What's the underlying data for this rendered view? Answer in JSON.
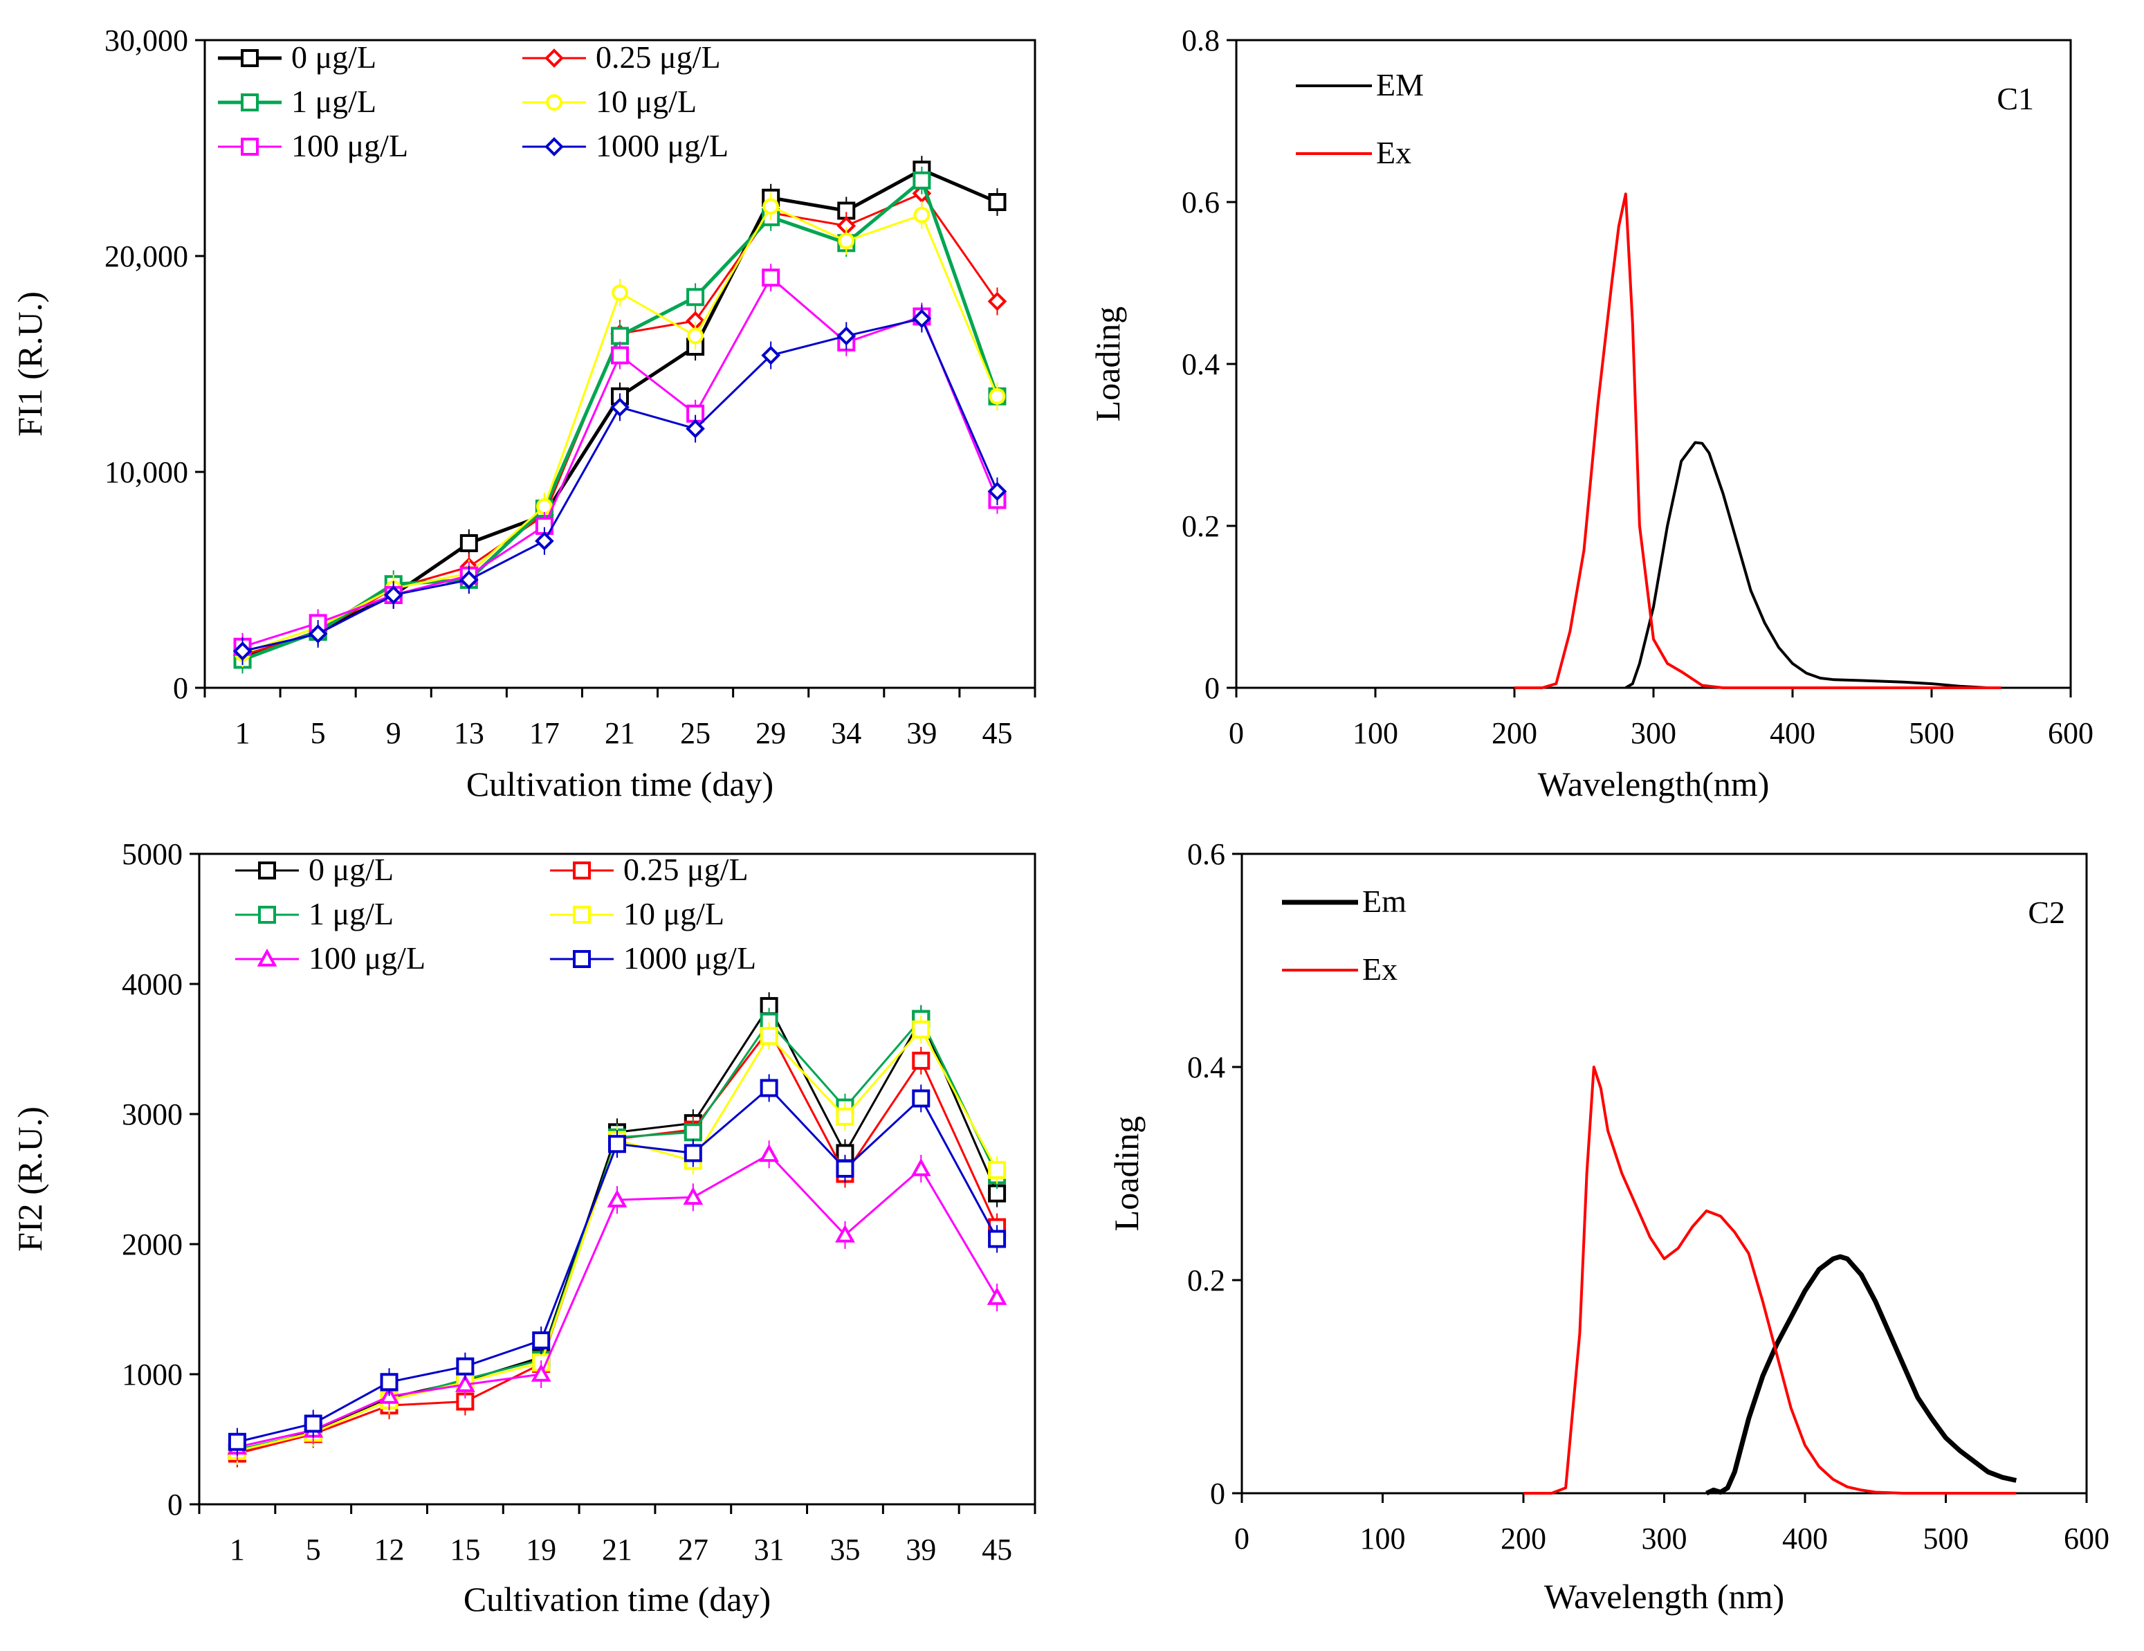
{
  "chart_data": [
    {
      "id": "fi1",
      "type": "line",
      "title": "",
      "xlabel": "Cultivation time (day)",
      "ylabel": "FI1 (R.U.)",
      "categories": [
        "1",
        "5",
        "9",
        "13",
        "17",
        "21",
        "25",
        "29",
        "34",
        "39",
        "45"
      ],
      "ylim": [
        0,
        30000
      ],
      "yticks": [
        0,
        10000,
        20000,
        30000
      ],
      "ytick_labels": [
        "0",
        "10,000",
        "20,000",
        "30,000"
      ],
      "legend_position": "top-left",
      "series": [
        {
          "name": "0 μg/L",
          "color": "#000000",
          "marker": "square",
          "width": 5,
          "values": [
            1400,
            2600,
            4300,
            6700,
            8000,
            13500,
            15800,
            22700,
            22100,
            24000,
            22500
          ]
        },
        {
          "name": "0.25 μg/L",
          "color": "#ff0000",
          "marker": "diamond",
          "width": 3,
          "values": [
            1500,
            2600,
            4600,
            5600,
            8000,
            16400,
            17000,
            22000,
            21400,
            22900,
            17900
          ]
        },
        {
          "name": "1 μg/L",
          "color": "#00a651",
          "marker": "square",
          "width": 5,
          "values": [
            1300,
            2600,
            4800,
            5000,
            8300,
            16300,
            18100,
            21800,
            20600,
            23500,
            13500
          ]
        },
        {
          "name": "10 μg/L",
          "color": "#ffff00",
          "marker": "circle",
          "width": 3,
          "values": [
            1600,
            2800,
            4600,
            5300,
            8400,
            18300,
            16300,
            22300,
            20700,
            21900,
            13500
          ]
        },
        {
          "name": "100 μg/L",
          "color": "#ff00ff",
          "marker": "square",
          "width": 3,
          "values": [
            1900,
            3000,
            4300,
            5200,
            7500,
            15400,
            12700,
            19000,
            16000,
            17200,
            8700
          ]
        },
        {
          "name": "1000 μg/L",
          "color": "#0000cc",
          "marker": "diamond",
          "width": 3,
          "values": [
            1700,
            2500,
            4300,
            5000,
            6800,
            13000,
            12000,
            15400,
            16300,
            17100,
            9100
          ]
        }
      ]
    },
    {
      "id": "fi2",
      "type": "line",
      "title": "",
      "xlabel": "Cultivation time (day)",
      "ylabel": "FI2 (R.U.)",
      "categories": [
        "1",
        "5",
        "12",
        "15",
        "19",
        "21",
        "27",
        "31",
        "35",
        "39",
        "45"
      ],
      "ylim": [
        0,
        5000
      ],
      "yticks": [
        0,
        1000,
        2000,
        3000,
        4000,
        5000
      ],
      "ytick_labels": [
        "0",
        "1000",
        "2000",
        "3000",
        "4000",
        "5000"
      ],
      "legend_position": "top-left",
      "series": [
        {
          "name": "0 μg/L",
          "color": "#000000",
          "marker": "square",
          "width": 3,
          "values": [
            400,
            560,
            820,
            950,
            1130,
            2860,
            2930,
            3830,
            2700,
            3730,
            2390
          ]
        },
        {
          "name": "0.25 μg/L",
          "color": "#ff0000",
          "marker": "square",
          "width": 3,
          "values": [
            390,
            540,
            760,
            790,
            1080,
            2810,
            2880,
            3650,
            2540,
            3410,
            2130
          ]
        },
        {
          "name": "1 μg/L",
          "color": "#00a651",
          "marker": "square",
          "width": 3,
          "values": [
            420,
            550,
            800,
            960,
            1110,
            2820,
            2860,
            3710,
            3050,
            3730,
            2530
          ]
        },
        {
          "name": "10 μg/L",
          "color": "#ffff00",
          "marker": "square",
          "width": 3,
          "values": [
            410,
            550,
            800,
            940,
            1090,
            2800,
            2640,
            3600,
            2980,
            3650,
            2570
          ]
        },
        {
          "name": "100 μg/L",
          "color": "#ff00ff",
          "marker": "triangle",
          "width": 3,
          "values": [
            440,
            570,
            830,
            920,
            1000,
            2340,
            2360,
            2690,
            2070,
            2580,
            1590
          ]
        },
        {
          "name": "1000 μg/L",
          "color": "#0000cc",
          "marker": "square",
          "width": 3,
          "values": [
            480,
            620,
            940,
            1060,
            1260,
            2770,
            2700,
            3200,
            2580,
            3120,
            2040
          ]
        }
      ]
    },
    {
      "id": "c1",
      "type": "line",
      "title": "",
      "panel_label": "C1",
      "xlabel": "Wavelength(nm)",
      "ylabel": "Loading",
      "xlim": [
        0,
        600
      ],
      "ylim": [
        0,
        0.8
      ],
      "xticks": [
        0,
        100,
        200,
        300,
        400,
        500,
        600
      ],
      "xtick_labels": [
        "0",
        "100",
        "200",
        "300",
        "400",
        "500",
        "600"
      ],
      "yticks": [
        0,
        0.2,
        0.4,
        0.6,
        0.8
      ],
      "ytick_labels": [
        "0",
        "0.2",
        "0.4",
        "0.6",
        "0.8"
      ],
      "legend_position": "top-left",
      "series": [
        {
          "name": "EM",
          "color": "#000000",
          "width": 4,
          "x": [
            280,
            285,
            290,
            300,
            310,
            320,
            330,
            335,
            340,
            350,
            360,
            370,
            380,
            390,
            400,
            410,
            420,
            430,
            450,
            480,
            500,
            520,
            540
          ],
          "y": [
            0,
            0.005,
            0.03,
            0.1,
            0.2,
            0.28,
            0.303,
            0.302,
            0.29,
            0.24,
            0.18,
            0.12,
            0.08,
            0.05,
            0.03,
            0.018,
            0.012,
            0.01,
            0.009,
            0.007,
            0.005,
            0.002,
            0
          ]
        },
        {
          "name": "Ex",
          "color": "#ff0000",
          "width": 4,
          "x": [
            200,
            220,
            230,
            240,
            250,
            260,
            270,
            275,
            280,
            285,
            290,
            300,
            310,
            320,
            335,
            350,
            400,
            450,
            500,
            550
          ],
          "y": [
            0,
            0,
            0.005,
            0.07,
            0.17,
            0.35,
            0.5,
            0.57,
            0.61,
            0.45,
            0.2,
            0.06,
            0.03,
            0.02,
            0.003,
            0,
            0,
            0,
            0,
            0
          ]
        }
      ]
    },
    {
      "id": "c2",
      "type": "line",
      "title": "",
      "panel_label": "C2",
      "xlabel": "Wavelength (nm)",
      "ylabel": "Loading",
      "xlim": [
        0,
        600
      ],
      "ylim": [
        0,
        0.6
      ],
      "xticks": [
        0,
        100,
        200,
        300,
        400,
        500,
        600
      ],
      "xtick_labels": [
        "0",
        "100",
        "200",
        "300",
        "400",
        "500",
        "600"
      ],
      "yticks": [
        0,
        0.2,
        0.4,
        0.6
      ],
      "ytick_labels": [
        "0",
        "0.2",
        "0.4",
        "0.6"
      ],
      "legend_position": "top-left",
      "series": [
        {
          "name": "Em",
          "color": "#000000",
          "width": 7,
          "x": [
            330,
            335,
            340,
            345,
            350,
            360,
            370,
            380,
            390,
            400,
            410,
            420,
            425,
            430,
            440,
            450,
            460,
            470,
            480,
            490,
            500,
            510,
            520,
            530,
            540,
            550
          ],
          "y": [
            0,
            0.003,
            0.001,
            0.005,
            0.02,
            0.07,
            0.11,
            0.14,
            0.165,
            0.19,
            0.21,
            0.22,
            0.222,
            0.22,
            0.205,
            0.18,
            0.15,
            0.12,
            0.09,
            0.07,
            0.052,
            0.04,
            0.03,
            0.02,
            0.015,
            0.012
          ]
        },
        {
          "name": "Ex",
          "color": "#ff0000",
          "width": 4,
          "x": [
            200,
            220,
            230,
            240,
            245,
            250,
            255,
            260,
            270,
            280,
            290,
            300,
            310,
            320,
            330,
            340,
            350,
            360,
            370,
            380,
            390,
            400,
            410,
            420,
            430,
            440,
            450,
            470,
            500,
            550
          ],
          "y": [
            0,
            0,
            0.005,
            0.15,
            0.3,
            0.4,
            0.38,
            0.34,
            0.3,
            0.27,
            0.24,
            0.22,
            0.23,
            0.25,
            0.265,
            0.26,
            0.245,
            0.225,
            0.18,
            0.13,
            0.08,
            0.045,
            0.025,
            0.013,
            0.006,
            0.003,
            0.001,
            0,
            0,
            0
          ]
        }
      ]
    }
  ]
}
